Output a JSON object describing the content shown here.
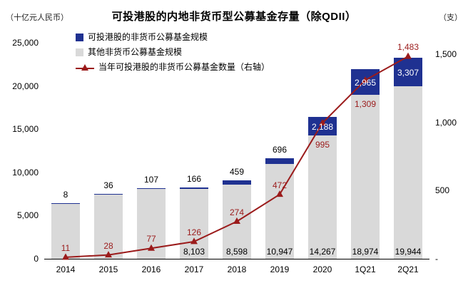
{
  "title": "可投港股的内地非货币型公募基金存量（除QDII）",
  "axis_units": {
    "left": "（十亿元人民币）",
    "right": "（支）"
  },
  "legend": {
    "items": [
      {
        "label": "可投港股的非货币公募基金规模",
        "swatch": "square",
        "color": "#1F3191"
      },
      {
        "label": "其他非货币公募基金规模",
        "swatch": "square",
        "color": "#D9D9D9"
      },
      {
        "label": "当年可投港股的非货币公募基金数量（右轴）",
        "swatch": "line-triangle",
        "color": "#9B1B1B"
      }
    ]
  },
  "chart_data": {
    "type": "bar",
    "subtype": "stacked-bars-with-line",
    "title": "可投港股的内地非货币型公募基金存量（除QDII）",
    "categories": [
      "2014",
      "2015",
      "2016",
      "2017",
      "2018",
      "2019",
      "2020",
      "1Q21",
      "2Q21"
    ],
    "series": [
      {
        "name": "可投港股的非货币公募基金规模",
        "type": "bar",
        "stack": "top",
        "axis": "left",
        "color": "#1F3191",
        "values": [
          8,
          36,
          107,
          166,
          459,
          696,
          2188,
          2965,
          3307
        ],
        "labels": [
          "8",
          "36",
          "107",
          "166",
          "459",
          "696",
          "2,188",
          "2,965",
          "3,307"
        ]
      },
      {
        "name": "其他非货币公募基金规模",
        "type": "bar",
        "stack": "bottom",
        "axis": "left",
        "color": "#D9D9D9",
        "values": [
          6400,
          7450,
          8090,
          8103,
          8598,
          10947,
          14267,
          18974,
          19944
        ],
        "labels": [
          "",
          "",
          "",
          "8,103",
          "8,598",
          "10,947",
          "14,267",
          "18,974",
          "19,944"
        ]
      },
      {
        "name": "当年可投港股的非货币公募基金数量（右轴）",
        "type": "line",
        "axis": "right",
        "color": "#9B1B1B",
        "marker": "triangle-up",
        "values": [
          11,
          28,
          77,
          126,
          274,
          472,
          995,
          1309,
          1483
        ],
        "labels": [
          "11",
          "28",
          "77",
          "126",
          "274",
          "472",
          "995",
          "1,309",
          "1,483"
        ],
        "label_positions": [
          "above",
          "above",
          "above",
          "above",
          "above",
          "above",
          "below",
          "below",
          "above"
        ]
      }
    ],
    "left_axis": {
      "min": 0,
      "max": 25000,
      "tick_values": [
        0,
        5000,
        10000,
        15000,
        20000,
        25000
      ],
      "tick_labels": [
        "0",
        "5,000",
        "10,000",
        "15,000",
        "20,000",
        "25,000"
      ]
    },
    "right_axis": {
      "min": 0,
      "max": 1583,
      "tick_values": [
        0,
        500,
        1000,
        1500
      ],
      "tick_labels": [
        "-",
        "500",
        "1,000",
        "1,500"
      ]
    },
    "grid": false,
    "legend_position": "top-left"
  }
}
